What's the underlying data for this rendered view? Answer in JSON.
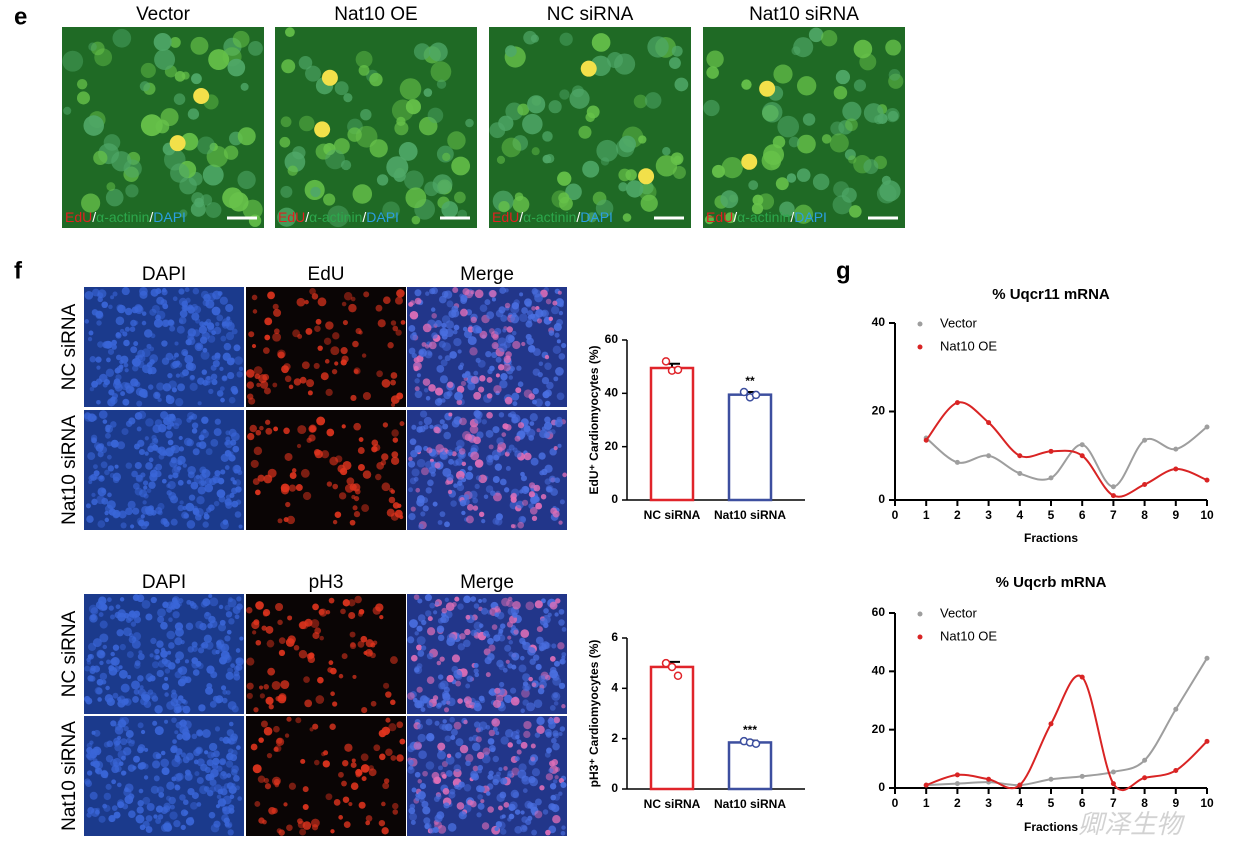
{
  "panels": {
    "e": {
      "letter": "e",
      "titles": [
        "Vector",
        "Nat10 OE",
        "NC siRNA",
        "Nat10 siRNA"
      ],
      "caption": [
        "EdU",
        "/",
        "α-actinin",
        "/",
        "DAPI"
      ]
    },
    "f": {
      "letter": "f",
      "columns_top": [
        "DAPI",
        "EdU",
        "Merge"
      ],
      "columns_bottom": [
        "DAPI",
        "pH3",
        "Merge"
      ],
      "rows": [
        "NC siRNA",
        "Nat10 siRNA"
      ]
    },
    "g": {
      "letter": "g"
    }
  },
  "watermark": "卿泽生物",
  "chart_data": [
    {
      "type": "bar",
      "ylabel": "EdU⁺ Cardiomyocytes (%)",
      "categories": [
        "NC siRNA",
        "Nat10 siRNA"
      ],
      "values": [
        49.5,
        39.5
      ],
      "errors": [
        1.6,
        1.0
      ],
      "points": [
        [
          52,
          48.5,
          48.8
        ],
        [
          40.5,
          38.5,
          39.4
        ]
      ],
      "colors": [
        "#e0242a",
        "#3d4f9f"
      ],
      "annotations": [
        {
          "category": "Nat10 siRNA",
          "text": "**"
        }
      ],
      "ylim": [
        0,
        60
      ],
      "yticks": [
        0,
        20,
        40,
        60
      ]
    },
    {
      "type": "bar",
      "ylabel": "pH3⁺ Cardiomyocytes (%)",
      "categories": [
        "NC siRNA",
        "Nat10 siRNA"
      ],
      "values": [
        4.85,
        1.85
      ],
      "errors": [
        0.2,
        0.07
      ],
      "points": [
        [
          5.0,
          4.85,
          4.5
        ],
        [
          1.9,
          1.85,
          1.8
        ]
      ],
      "colors": [
        "#e0242a",
        "#3d4f9f"
      ],
      "annotations": [
        {
          "category": "Nat10 siRNA",
          "text": "***"
        }
      ],
      "ylim": [
        0,
        6
      ],
      "yticks": [
        0,
        2,
        4,
        6
      ]
    },
    {
      "type": "line",
      "title": "% Uqcr11 mRNA",
      "xlabel": "Fractions",
      "x": [
        1,
        2,
        3,
        4,
        5,
        6,
        7,
        8,
        9,
        10
      ],
      "series": [
        {
          "name": "Vector",
          "color": "#9e9e9e",
          "values": [
            14,
            8.5,
            10,
            6,
            5,
            12.5,
            3,
            13.5,
            11.5,
            16.5
          ]
        },
        {
          "name": "Nat10 OE",
          "color": "#d92424",
          "values": [
            13.5,
            22,
            17.5,
            10,
            11,
            10,
            1,
            3.5,
            7,
            4.5
          ]
        }
      ],
      "xlim": [
        0,
        10
      ],
      "xticks": [
        0,
        1,
        2,
        3,
        4,
        5,
        6,
        7,
        8,
        9,
        10
      ],
      "ylim": [
        0,
        40
      ],
      "yticks": [
        0,
        20,
        40
      ],
      "legend": "upper left"
    },
    {
      "type": "line",
      "title": "% Uqcrb mRNA",
      "xlabel": "Fractions",
      "x": [
        1,
        2,
        3,
        4,
        5,
        6,
        7,
        8,
        9,
        10
      ],
      "series": [
        {
          "name": "Vector",
          "color": "#9e9e9e",
          "values": [
            1,
            1.5,
            2,
            1,
            3,
            4,
            5.5,
            9.5,
            27,
            44.5
          ]
        },
        {
          "name": "Nat10 OE",
          "color": "#d92424",
          "values": [
            1,
            4.5,
            3,
            1,
            22,
            38,
            1.5,
            3.5,
            6,
            16
          ]
        }
      ],
      "xlim": [
        0,
        10
      ],
      "xticks": [
        0,
        1,
        2,
        3,
        4,
        5,
        6,
        7,
        8,
        9,
        10
      ],
      "ylim": [
        0,
        60
      ],
      "yticks": [
        0,
        20,
        40,
        60
      ],
      "legend": "upper left"
    }
  ]
}
